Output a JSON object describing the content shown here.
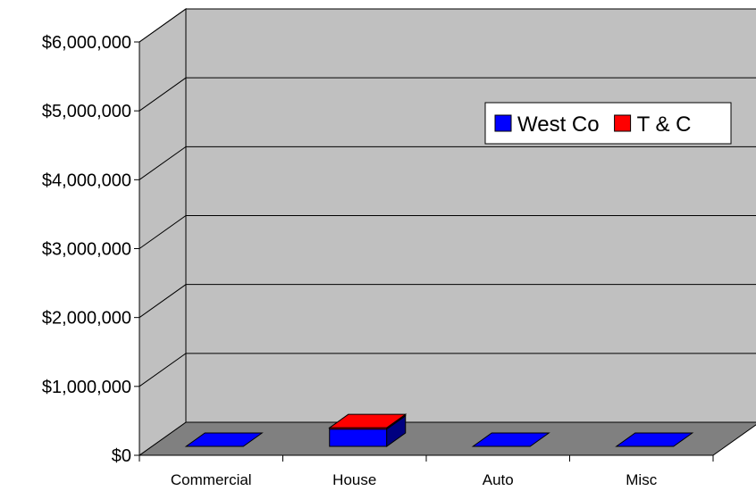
{
  "chart_data": {
    "type": "bar",
    "title": "",
    "xlabel": "",
    "ylabel": "",
    "categories": [
      "Commercial",
      "House",
      "Auto",
      "Misc"
    ],
    "series": [
      {
        "name": "West Co",
        "values": [
          0,
          250000,
          0,
          0
        ],
        "color": "#0000ff"
      },
      {
        "name": "T & C",
        "values": [
          0,
          20000,
          0,
          0
        ],
        "color": "#ff0000"
      }
    ],
    "stacked": true,
    "ylim": [
      0,
      6000000
    ],
    "yticks": [
      "$0",
      "$1,000,000",
      "$2,000,000",
      "$3,000,000",
      "$4,000,000",
      "$5,000,000",
      "$6,000,000"
    ],
    "grid": true,
    "legend_position": "top-right",
    "style": "3d",
    "colors": {
      "wall": "#c0c0c0",
      "floor": "#808080"
    }
  }
}
